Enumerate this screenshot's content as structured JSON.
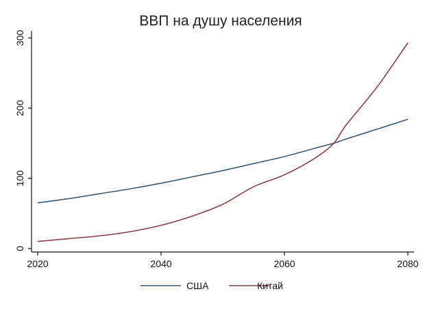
{
  "chart_data": {
    "type": "line",
    "title": "ВВП на душу населения",
    "xlabel": "",
    "ylabel": "",
    "xlim": [
      2019,
      2081
    ],
    "ylim": [
      -5,
      310
    ],
    "x_ticks": [
      2020,
      2040,
      2060,
      2080
    ],
    "y_ticks": [
      0,
      100,
      200,
      300
    ],
    "grid": false,
    "legend_position": "bottom",
    "series": [
      {
        "name": "США",
        "color": "#3e5a73",
        "x": [
          2020,
          2025,
          2030,
          2035,
          2040,
          2045,
          2050,
          2055,
          2060,
          2065,
          2068,
          2070,
          2075,
          2080
        ],
        "y": [
          65,
          71,
          78,
          85,
          93,
          102,
          111,
          121,
          131,
          143,
          150,
          156,
          170,
          184
        ]
      },
      {
        "name": "Китай",
        "color": "#8b3e46",
        "x": [
          2020,
          2025,
          2030,
          2035,
          2040,
          2045,
          2050,
          2055,
          2060,
          2065,
          2068,
          2070,
          2075,
          2080
        ],
        "y": [
          10,
          14,
          18,
          24,
          33,
          46,
          63,
          88,
          105,
          129,
          150,
          176,
          230,
          293
        ]
      }
    ]
  }
}
